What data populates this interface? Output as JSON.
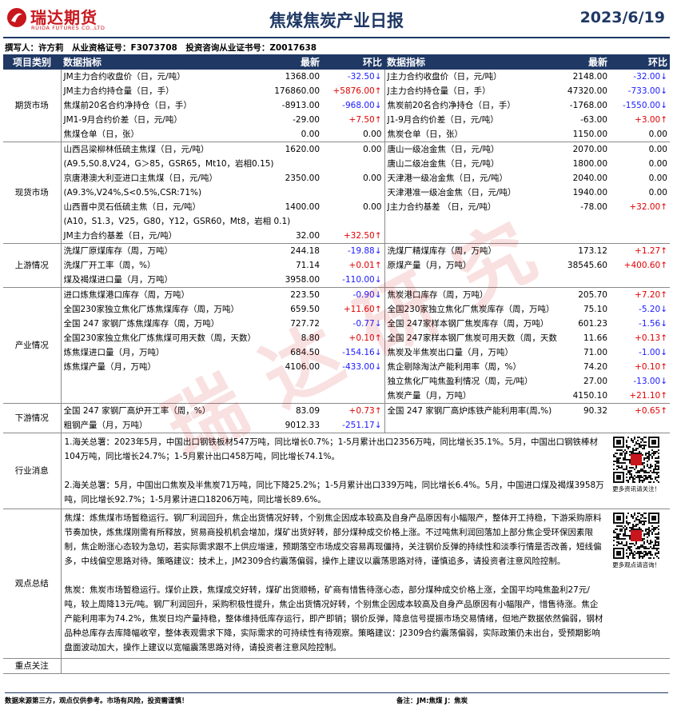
{
  "header": {
    "company": "瑞达期货",
    "company_en": "RUIDA FUTURES CO.,LTD",
    "title": "焦煤焦炭产业日报",
    "date": "2023/6/19"
  },
  "author_line": "撰写人：许方莉　从业资格证号：F3073708　投资咨询从业证书号：Z0017638",
  "table": {
    "columns": [
      "项目类别",
      "数据指标",
      "最新",
      "环比",
      "数据指标",
      "最新",
      "环比"
    ],
    "sections": [
      {
        "category": "期货市场",
        "rows": [
          {
            "left": [
              "JM主力合约收盘价（日，元/吨）",
              "1368.00",
              "-32.50↓"
            ],
            "right": [
              "J主力合约收盘价（日，元/吨）",
              "2148.00",
              "-32.00↓"
            ]
          },
          {
            "left": [
              "JM主力合约持仓量（日，手）",
              "176860.00",
              "+5876.00↑"
            ],
            "right": [
              "J主力合约持仓量（日，手）",
              "47320.00",
              "-733.00↓"
            ]
          },
          {
            "left": [
              "焦煤前20名合约净持仓（日，手）",
              "-8913.00",
              "-968.00↓"
            ],
            "right": [
              "焦炭前20名合约净持仓（日，手）",
              "-1768.00",
              "-1550.00↓"
            ]
          },
          {
            "left": [
              "JM1-9月合约价差（日，元/吨）",
              "-29.00",
              "+7.50↑"
            ],
            "right": [
              "J1-9月合约价差（日，元/吨）",
              "-63.00",
              "+3.00↑"
            ]
          },
          {
            "left": [
              "焦煤仓单（日，张）",
              "0.00",
              "0.00"
            ],
            "right": [
              "焦炭仓单（日，张）",
              "1150.00",
              "0.00"
            ]
          }
        ]
      },
      {
        "category": "现货市场",
        "rows": [
          {
            "left": [
              "山西吕梁柳林低硫主焦煤（日，元/吨）",
              "1620.00",
              "0.00"
            ],
            "right": [
              "唐山一级冶金焦（日，元/吨）",
              "2070.00",
              "0.00"
            ]
          },
          {
            "left": [
              "(A9.5,S0.8,V24，G＞85，GSR65，Mt10，岩相0.15)"
            ],
            "right": [
              "唐山二级冶金焦（日，元/吨）",
              "1800.00",
              "0.00"
            ]
          },
          {
            "left": [
              "京唐港澳大利亚进口主焦煤（日，元/吨）",
              "2350.00",
              "0.00"
            ],
            "right": [
              "天津港一级冶金焦（日，元/吨）",
              "2040.00",
              "0.00"
            ]
          },
          {
            "left": [
              "(A9.3%,V24%,S<0.5%,CSR:71%)"
            ],
            "right": [
              "天津港准一级冶金焦（日，元/吨）",
              "1940.00",
              "0.00"
            ]
          },
          {
            "left": [
              "山西晋中灵石低硫主焦（日，元/吨）",
              "1400.00",
              "0.00"
            ],
            "right": [
              "J主力合约基差 （日，元/吨）",
              "-78.00",
              "+32.00↑"
            ]
          },
          {
            "left": [
              "(A10，S1.3，V25，G80，Y12，GSR60，Mt8，岩相 0.1)"
            ],
            "right": null
          },
          {
            "left": [
              "JM主力合约基差（日，元/吨）",
              "32.00",
              "+32.50↑"
            ],
            "right": null
          }
        ]
      },
      {
        "category": "上游情况",
        "rows": [
          {
            "left": [
              "洗煤厂原煤库存（周，万吨）",
              "244.18",
              "-19.88↓"
            ],
            "right": [
              "洗煤厂精煤库存（周，万吨）",
              "173.12",
              "+1.27↑"
            ]
          },
          {
            "left": [
              "洗煤厂开工率（周，%）",
              "71.14",
              "+0.01↑"
            ],
            "right": [
              "原煤产量（月，万吨）",
              "38545.60",
              "+400.60↑"
            ]
          },
          {
            "left": [
              "煤及褐煤进口量（月，万吨）",
              "3958.00",
              "-110.00↓"
            ],
            "right": null
          }
        ]
      },
      {
        "category": "产业情况",
        "rows": [
          {
            "left": [
              "进口炼焦煤港口库存（周，万吨）",
              "223.50",
              "-0.90↓"
            ],
            "right": [
              "焦炭港口库存（周，万吨）",
              "205.70",
              "+7.20↑"
            ]
          },
          {
            "left": [
              "全国230家独立焦化厂炼焦煤库存（周，万吨）",
              "659.50",
              "+11.60↑"
            ],
            "right": [
              "全国230家独立焦化厂焦炭库存（周，万吨）",
              "75.10",
              "-5.20↓"
            ]
          },
          {
            "left": [
              "全国 247 家钢厂炼焦煤库存（周，万吨）",
              "727.72",
              "-0.77↓"
            ],
            "right": [
              "全国 247家样本钢厂焦炭库存（周，万吨）",
              "601.23",
              "-1.56↓"
            ]
          },
          {
            "left": [
              "全国230家独立焦化厂炼焦煤可用天数（周，天数）",
              "8.80",
              "+0.10↑"
            ],
            "right": [
              "全国 247家样本钢厂焦炭可用天数（周，天数",
              "11.66",
              "+0.13↑"
            ]
          },
          {
            "left": [
              "炼焦煤进口量（月，万吨）",
              "684.50",
              "-154.16↓"
            ],
            "right": [
              "焦炭及半焦炭出口量（月，万吨）",
              "71.00",
              "-1.00↓"
            ]
          },
          {
            "left": [
              "炼焦煤产量（月，万吨）",
              "4106.00",
              "-433.00↓"
            ],
            "right": [
              "焦企剔除淘汰产能利用率（周，%）",
              "74.20",
              "+0.10↑"
            ]
          },
          {
            "left": null,
            "right": [
              "独立焦化厂吨焦盈利情况（周，元/吨）",
              "27.00",
              "-13.00↓"
            ]
          },
          {
            "left": null,
            "right": [
              "焦炭产量（月，万吨）",
              "4150.10",
              "+21.10↑"
            ]
          }
        ]
      },
      {
        "category": "下游情况",
        "rows": [
          {
            "left": [
              "全国 247 家钢厂高炉开工率（周，%）",
              "83.09",
              "+0.73↑"
            ],
            "right": [
              "全国 247 家钢厂高炉炼铁产能利用率(周,%)",
              "90.32",
              "+0.65↑"
            ]
          },
          {
            "left": [
              "粗钢产量（月，万吨）",
              "9012.33",
              "-251.17↓"
            ],
            "right": null
          }
        ]
      }
    ]
  },
  "news": {
    "category": "行业消息",
    "paragraphs": [
      "1.海关总署：2023年5月，中国出口钢铁板材547万吨，同比增长0.7%；1-5月累计出口2356万吨，同比增长35.1%。5月，中国出口钢铁棒材104万吨，同比增长24.7%；1-5月累计出口458万吨，同比增长74.1%。",
      "2.海关总署：5月，中国出口焦炭及半焦炭71万吨，同比下降25.2%；1-5月累计出口339万吨，同比增长6.4%。5月，中国进口煤及褐煤3958万吨，同比增长92.7%；1-5月累计进口18206万吨，同比增长89.6%。"
    ],
    "qr_caption": "更多资讯请关注！"
  },
  "views": {
    "category": "观点总结",
    "paragraphs": [
      "焦煤：炼焦煤市场暂稳运行。钢厂利润回升，焦企出货情况好转，个别焦企因成本较高及自身产品原因有小幅限产，整体开工持稳，下游采购原料节奏加快，炼焦煤刚需有所释放，贸易商投机机会增加，煤矿出货好转，部分煤种成交价格上涨。不过吨焦利润回落加上部分焦企受环保因素限制，焦企盼涨心态较为急切，若实际需求跟不上供应增速，预期落空市场成交容易再现僵持，关注钢价反弹的持续性和淡季行情是否改善，短线偏多，中线偏空思路对待。策略建议：技术上，JM2309合约震荡偏弱，操作上建议以震荡思路对待，谨慎追多，请投资者注意风险控制。",
      "焦炭：焦炭市场暂稳运行。煤价止跌，焦煤成交好转，煤矿出货顺畅，矿商有惜售待涨心态，部分煤种成交价格上涨，全国平均吨焦盈利27元/吨，较上周降13元/吨。钢厂利润回升，采购积极性提升，焦企出货情况好转，个别焦企因成本较高及自身产品原因有小幅限产，惜售待涨。焦企产能利用率为74.2%，焦炭日均产量持稳，整体维持低库存运行，即产即销；钢价反弹，降息信号提振市场交易情绪，但地产数据依然偏弱，钢材品种总库存去库降幅收窄，整体表观需求下降，实际需求的可持续性有待观察。策略建议：J2309合约震荡偏弱，实际政策仍未出台，受预期影响盘面波动加大，操作上建议以宽幅震荡思路对待，请投资者注意风险控制。"
    ],
    "qr_caption": "更多观点请咨询！"
  },
  "focus": {
    "category": "重点关注"
  },
  "footer": {
    "disclaimer": "数据来源第三方，观点仅供参考。市场有风险，投资需谨慎！",
    "note": "备注：JM:焦煤 J：焦炭"
  },
  "watermark": "瑞达研究"
}
